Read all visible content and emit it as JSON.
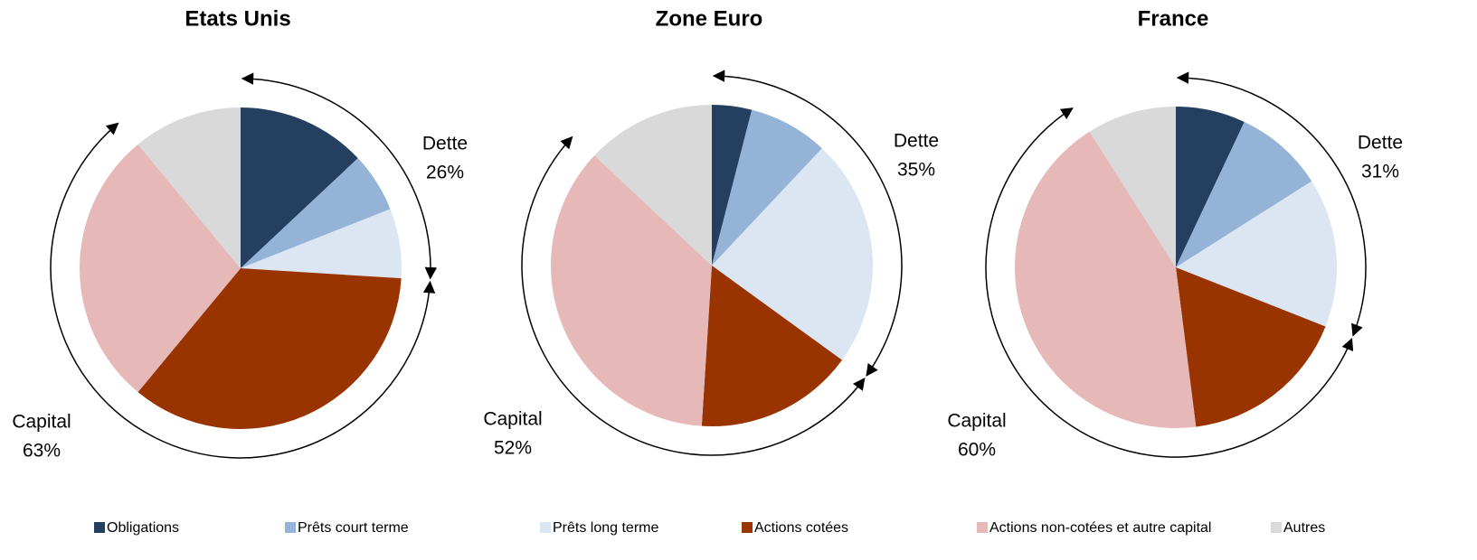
{
  "chart_data": [
    {
      "type": "pie",
      "title": "Etats Unis",
      "categories": [
        "Obligations",
        "Prêts court terme",
        "Prêts long terme",
        "Actions cotées",
        "Actions non-cotées et autre capital",
        "Autres"
      ],
      "values": [
        13,
        6,
        7,
        35,
        28,
        11
      ],
      "colors": [
        "#243f60",
        "#95b3d7",
        "#dce6f2",
        "#993300",
        "#e6b9b8",
        "#d9d9d9"
      ],
      "annotations": {
        "dette": "Dette",
        "dette_share": "26%",
        "capital": "Capital",
        "capital_share": "63%"
      }
    },
    {
      "type": "pie",
      "title": "Zone Euro",
      "categories": [
        "Obligations",
        "Prêts court terme",
        "Prêts long terme",
        "Actions cotées",
        "Actions non-cotées et autre capital",
        "Autres"
      ],
      "values": [
        4,
        8,
        23,
        16,
        36,
        13
      ],
      "colors": [
        "#243f60",
        "#95b3d7",
        "#dce6f2",
        "#993300",
        "#e6b9b8",
        "#d9d9d9"
      ],
      "annotations": {
        "dette": "Dette",
        "dette_share": "35%",
        "capital": "Capital",
        "capital_share": "52%"
      }
    },
    {
      "type": "pie",
      "title": "France",
      "categories": [
        "Obligations",
        "Prêts court terme",
        "Prêts long terme",
        "Actions cotées",
        "Actions non-cotées et autre capital",
        "Autres"
      ],
      "values": [
        7,
        9,
        15,
        17,
        43,
        9
      ],
      "colors": [
        "#243f60",
        "#95b3d7",
        "#dce6f2",
        "#993300",
        "#e6b9b8",
        "#d9d9d9"
      ],
      "annotations": {
        "dette": "Dette",
        "dette_share": "31%",
        "capital": "Capital",
        "capital_share": "60%"
      }
    }
  ]
}
